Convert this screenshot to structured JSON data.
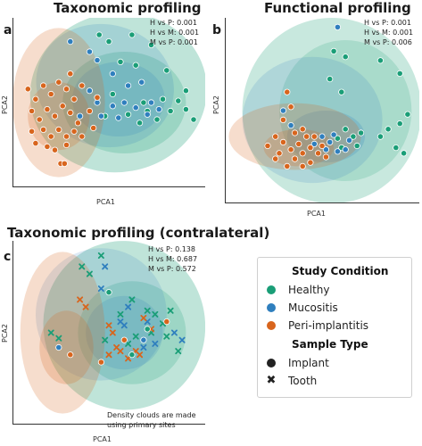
{
  "colors": {
    "healthy": "#1a9e77",
    "mucositis": "#2f7fbe",
    "peri": "#d8651d"
  },
  "panels": [
    {
      "letter": "a",
      "title": "Taxonomic profiling",
      "xlabel": "PCA1",
      "ylabel": "PCA2",
      "stats": [
        "H vs P: 0.001",
        "H vs M: 0.001",
        "M vs P: 0.001"
      ]
    },
    {
      "letter": "b",
      "title": "Functional profiling",
      "xlabel": "PCA1",
      "ylabel": "PCA2",
      "stats": [
        "H vs P: 0.001",
        "H vs M: 0.001",
        "M vs P: 0.006"
      ]
    },
    {
      "letter": "c",
      "title": "Taxonomic profiling (contralateral)",
      "xlabel": "PCA1",
      "ylabel": "PCA2",
      "stats": [
        "H vs P: 0.138",
        "H vs M: 0.687",
        "M vs P: 0.572"
      ],
      "note": [
        "Density clouds are made",
        "using primary sites"
      ]
    }
  ],
  "legend": {
    "condition_title": "Study Condition",
    "conditions": [
      "Healthy",
      "Mucositis",
      "Peri-implantitis"
    ],
    "type_title": "Sample Type",
    "types": [
      "Implant",
      "Tooth"
    ]
  },
  "chart_data": [
    {
      "type": "scatter",
      "title": "Taxonomic profiling",
      "xlabel": "PCA1",
      "ylabel": "PCA2",
      "xlim": [
        0,
        1
      ],
      "ylim": [
        0,
        1
      ],
      "series": [
        {
          "name": "Healthy",
          "marker": "circle",
          "points": [
            [
              0.45,
              0.9
            ],
            [
              0.5,
              0.86
            ],
            [
              0.62,
              0.9
            ],
            [
              0.72,
              0.84
            ],
            [
              0.56,
              0.74
            ],
            [
              0.64,
              0.72
            ],
            [
              0.8,
              0.69
            ],
            [
              0.78,
              0.52
            ],
            [
              0.86,
              0.51
            ],
            [
              0.9,
              0.57
            ],
            [
              0.82,
              0.45
            ],
            [
              0.68,
              0.5
            ],
            [
              0.7,
              0.45
            ],
            [
              0.94,
              0.4
            ],
            [
              0.52,
              0.55
            ],
            [
              0.48,
              0.42
            ],
            [
              0.6,
              0.43
            ],
            [
              0.66,
              0.38
            ],
            [
              0.75,
              0.4
            ],
            [
              0.9,
              0.46
            ]
          ]
        },
        {
          "name": "Mucositis",
          "marker": "circle",
          "points": [
            [
              0.3,
              0.86
            ],
            [
              0.4,
              0.8
            ],
            [
              0.44,
              0.75
            ],
            [
              0.52,
              0.67
            ],
            [
              0.6,
              0.6
            ],
            [
              0.67,
              0.62
            ],
            [
              0.4,
              0.57
            ],
            [
              0.44,
              0.5
            ],
            [
              0.52,
              0.48
            ],
            [
              0.58,
              0.5
            ],
            [
              0.64,
              0.47
            ],
            [
              0.7,
              0.43
            ],
            [
              0.35,
              0.42
            ],
            [
              0.46,
              0.42
            ],
            [
              0.72,
              0.5
            ],
            [
              0.76,
              0.46
            ],
            [
              0.55,
              0.41
            ]
          ]
        },
        {
          "name": "Peri-implantitis",
          "marker": "circle",
          "points": [
            [
              0.08,
              0.58
            ],
            [
              0.12,
              0.52
            ],
            [
              0.16,
              0.6
            ],
            [
              0.2,
              0.55
            ],
            [
              0.24,
              0.62
            ],
            [
              0.28,
              0.58
            ],
            [
              0.32,
              0.52
            ],
            [
              0.36,
              0.6
            ],
            [
              0.4,
              0.45
            ],
            [
              0.1,
              0.45
            ],
            [
              0.14,
              0.4
            ],
            [
              0.18,
              0.46
            ],
            [
              0.22,
              0.42
            ],
            [
              0.26,
              0.48
            ],
            [
              0.3,
              0.44
            ],
            [
              0.34,
              0.38
            ],
            [
              0.1,
              0.33
            ],
            [
              0.16,
              0.34
            ],
            [
              0.2,
              0.3
            ],
            [
              0.24,
              0.34
            ],
            [
              0.28,
              0.3
            ],
            [
              0.32,
              0.33
            ],
            [
              0.36,
              0.3
            ],
            [
              0.12,
              0.26
            ],
            [
              0.18,
              0.24
            ],
            [
              0.22,
              0.22
            ],
            [
              0.28,
              0.25
            ],
            [
              0.25,
              0.14
            ],
            [
              0.27,
              0.14
            ],
            [
              0.42,
              0.35
            ],
            [
              0.44,
              0.53
            ],
            [
              0.3,
              0.67
            ]
          ]
        }
      ]
    },
    {
      "type": "scatter",
      "title": "Functional profiling",
      "xlabel": "PCA1",
      "ylabel": "PCA2",
      "xlim": [
        0,
        1
      ],
      "ylim": [
        0,
        1
      ],
      "series": [
        {
          "name": "Healthy",
          "marker": "circle",
          "points": [
            [
              0.56,
              0.82
            ],
            [
              0.62,
              0.79
            ],
            [
              0.54,
              0.67
            ],
            [
              0.6,
              0.6
            ],
            [
              0.8,
              0.77
            ],
            [
              0.9,
              0.7
            ],
            [
              0.94,
              0.48
            ],
            [
              0.9,
              0.43
            ],
            [
              0.84,
              0.4
            ],
            [
              0.8,
              0.36
            ],
            [
              0.88,
              0.3
            ],
            [
              0.92,
              0.27
            ],
            [
              0.62,
              0.4
            ],
            [
              0.58,
              0.35
            ],
            [
              0.66,
              0.36
            ],
            [
              0.7,
              0.38
            ],
            [
              0.6,
              0.3
            ],
            [
              0.68,
              0.31
            ]
          ]
        },
        {
          "name": "Mucositis",
          "marker": "circle",
          "points": [
            [
              0.58,
              0.95
            ],
            [
              0.3,
              0.5
            ],
            [
              0.34,
              0.42
            ],
            [
              0.5,
              0.36
            ],
            [
              0.54,
              0.33
            ],
            [
              0.46,
              0.32
            ],
            [
              0.58,
              0.28
            ],
            [
              0.64,
              0.34
            ],
            [
              0.52,
              0.29
            ],
            [
              0.62,
              0.29
            ],
            [
              0.56,
              0.37
            ]
          ]
        },
        {
          "name": "Peri-implantitis",
          "marker": "circle",
          "points": [
            [
              0.32,
              0.6
            ],
            [
              0.34,
              0.52
            ],
            [
              0.3,
              0.45
            ],
            [
              0.36,
              0.38
            ],
            [
              0.26,
              0.36
            ],
            [
              0.3,
              0.33
            ],
            [
              0.22,
              0.31
            ],
            [
              0.28,
              0.27
            ],
            [
              0.34,
              0.29
            ],
            [
              0.38,
              0.32
            ],
            [
              0.4,
              0.27
            ],
            [
              0.44,
              0.3
            ],
            [
              0.42,
              0.36
            ],
            [
              0.36,
              0.24
            ],
            [
              0.44,
              0.22
            ],
            [
              0.48,
              0.27
            ],
            [
              0.52,
              0.25
            ],
            [
              0.26,
              0.24
            ],
            [
              0.32,
              0.2
            ],
            [
              0.4,
              0.2
            ],
            [
              0.5,
              0.31
            ],
            [
              0.46,
              0.36
            ],
            [
              0.4,
              0.4
            ]
          ]
        }
      ]
    },
    {
      "type": "scatter",
      "title": "Taxonomic profiling (contralateral)",
      "xlabel": "PCA1",
      "ylabel": "PCA2",
      "xlim": [
        0,
        1
      ],
      "ylim": [
        0,
        1
      ],
      "series": [
        {
          "name": "Healthy",
          "marker": "x",
          "points": [
            [
              0.46,
              0.92
            ],
            [
              0.36,
              0.86
            ],
            [
              0.4,
              0.82
            ],
            [
              0.62,
              0.68
            ],
            [
              0.7,
              0.62
            ],
            [
              0.74,
              0.6
            ],
            [
              0.78,
              0.55
            ],
            [
              0.72,
              0.5
            ],
            [
              0.8,
              0.48
            ],
            [
              0.2,
              0.5
            ],
            [
              0.24,
              0.47
            ],
            [
              0.48,
              0.46
            ],
            [
              0.6,
              0.44
            ],
            [
              0.64,
              0.48
            ],
            [
              0.86,
              0.4
            ],
            [
              0.56,
              0.6
            ],
            [
              0.82,
              0.62
            ]
          ]
        },
        {
          "name": "Mucositis",
          "marker": "x",
          "points": [
            [
              0.48,
              0.86
            ],
            [
              0.46,
              0.74
            ],
            [
              0.6,
              0.64
            ],
            [
              0.56,
              0.56
            ],
            [
              0.58,
              0.54
            ],
            [
              0.84,
              0.5
            ],
            [
              0.88,
              0.46
            ],
            [
              0.7,
              0.56
            ],
            [
              0.74,
              0.44
            ],
            [
              0.68,
              0.42
            ]
          ]
        },
        {
          "name": "Peri-implantitis",
          "marker": "x",
          "points": [
            [
              0.35,
              0.68
            ],
            [
              0.38,
              0.64
            ],
            [
              0.5,
              0.54
            ],
            [
              0.52,
              0.5
            ],
            [
              0.54,
              0.42
            ],
            [
              0.5,
              0.38
            ],
            [
              0.56,
              0.4
            ],
            [
              0.64,
              0.4
            ],
            [
              0.68,
              0.58
            ],
            [
              0.72,
              0.52
            ],
            [
              0.66,
              0.38
            ],
            [
              0.6,
              0.36
            ]
          ]
        },
        {
          "name": "Healthy",
          "marker": "circle",
          "points": [
            [
              0.5,
              0.72
            ],
            [
              0.7,
              0.52
            ],
            [
              0.62,
              0.38
            ]
          ]
        },
        {
          "name": "Mucositis",
          "marker": "circle",
          "points": [
            [
              0.24,
              0.42
            ],
            [
              0.68,
              0.46
            ]
          ]
        },
        {
          "name": "Peri-implantitis",
          "marker": "circle",
          "points": [
            [
              0.3,
              0.38
            ],
            [
              0.58,
              0.46
            ],
            [
              0.46,
              0.34
            ],
            [
              0.8,
              0.56
            ]
          ]
        }
      ]
    }
  ]
}
